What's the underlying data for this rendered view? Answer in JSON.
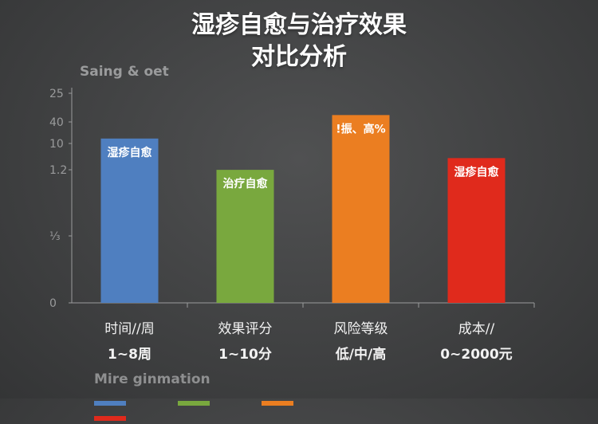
{
  "title_line1": "湿疹自愈与治疗效果",
  "title_line2": "对比分析",
  "chart_label": "Saing & oet",
  "footer_note": "Mire ginmation",
  "colors": {
    "blue": "#4f7fc0",
    "green": "#79a83e",
    "orange": "#eb7e21",
    "red": "#e02a1c",
    "axis": "#9a9b9c"
  },
  "chart_data": {
    "type": "bar",
    "title": "湿疹自愈与治疗效果 对比分析",
    "yticks": [
      "25",
      "40",
      "10",
      "1.2",
      "⅓",
      "0"
    ],
    "ylim": [
      0,
      55
    ],
    "bars": [
      {
        "value": 42,
        "bar_label": "湿疹自愈",
        "category": "时间//周",
        "sub_label": "1~8周",
        "color": "#4f7fc0"
      },
      {
        "value": 34,
        "bar_label": "治疗自愈",
        "category": "效果评分",
        "sub_label": "1~10分",
        "color": "#79a83e"
      },
      {
        "value": 48,
        "bar_label": "!振、高%",
        "category": "风险等级",
        "sub_label": "低/中/高",
        "color": "#eb7e21"
      },
      {
        "value": 37,
        "bar_label": "湿疹自愈",
        "category": "成本//",
        "sub_label": "0~2000元",
        "color": "#e02a1c"
      }
    ]
  }
}
